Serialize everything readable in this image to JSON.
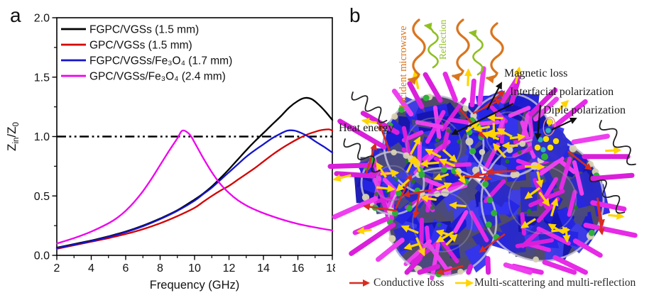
{
  "panels": {
    "a_label": "a",
    "b_label": "b"
  },
  "chart_data": {
    "type": "line",
    "title": "",
    "xlabel": "Frequency (GHz)",
    "ylabel": {
      "pre": "Z",
      "pre_sub": "in",
      "mid": "/Z",
      "mid_sub": "0"
    },
    "xlim": [
      2,
      18
    ],
    "ylim": [
      0.0,
      2.0
    ],
    "xticks": [
      2,
      4,
      6,
      8,
      10,
      12,
      14,
      16,
      18
    ],
    "x_minor_ticks": [
      3,
      5,
      7,
      9,
      11,
      13,
      15,
      17
    ],
    "yticks": [
      "0.0",
      "0.5",
      "1.0",
      "1.5",
      "2.0"
    ],
    "ytick_values": [
      0.0,
      0.5,
      1.0,
      1.5,
      2.0
    ],
    "y_minor_values": [
      0.25,
      0.75,
      1.25,
      1.75
    ],
    "grid": false,
    "legend_position": "top-left",
    "reference_line": {
      "y": 1.0,
      "style": "dash-dot-dot",
      "color": "#000000"
    },
    "series": [
      {
        "name": "FGPC/VGSs (1.5 mm)",
        "color": "#000000",
        "points": [
          [
            2,
            0.065
          ],
          [
            3,
            0.095
          ],
          [
            4,
            0.125
          ],
          [
            5,
            0.16
          ],
          [
            6,
            0.2
          ],
          [
            7,
            0.25
          ],
          [
            8,
            0.31
          ],
          [
            9,
            0.38
          ],
          [
            10,
            0.47
          ],
          [
            10.5,
            0.52
          ],
          [
            11,
            0.58
          ],
          [
            11.5,
            0.65
          ],
          [
            12,
            0.725
          ],
          [
            12.5,
            0.805
          ],
          [
            13,
            0.885
          ],
          [
            13.5,
            0.96
          ],
          [
            14,
            1.03
          ],
          [
            14.5,
            1.1
          ],
          [
            15,
            1.17
          ],
          [
            15.5,
            1.245
          ],
          [
            16,
            1.3
          ],
          [
            16.4,
            1.325
          ],
          [
            16.8,
            1.315
          ],
          [
            17.2,
            1.27
          ],
          [
            17.6,
            1.21
          ],
          [
            18,
            1.14
          ]
        ]
      },
      {
        "name": "GPC/VGSs (1.5 mm)",
        "color": "#d40000",
        "points": [
          [
            2,
            0.055
          ],
          [
            3,
            0.085
          ],
          [
            4,
            0.115
          ],
          [
            5,
            0.145
          ],
          [
            6,
            0.18
          ],
          [
            7,
            0.22
          ],
          [
            8,
            0.27
          ],
          [
            9,
            0.33
          ],
          [
            10,
            0.4
          ],
          [
            10.5,
            0.45
          ],
          [
            11,
            0.5
          ],
          [
            11.5,
            0.545
          ],
          [
            12,
            0.585
          ],
          [
            12.5,
            0.635
          ],
          [
            13,
            0.685
          ],
          [
            13.5,
            0.735
          ],
          [
            14,
            0.79
          ],
          [
            14.5,
            0.845
          ],
          [
            15,
            0.895
          ],
          [
            15.5,
            0.94
          ],
          [
            16,
            0.98
          ],
          [
            16.5,
            1.015
          ],
          [
            17,
            1.04
          ],
          [
            17.4,
            1.055
          ],
          [
            17.8,
            1.06
          ],
          [
            18,
            1.05
          ]
        ]
      },
      {
        "name": "FGPC/VGSs/Fe₃O₄ (1.7 mm)",
        "color": "#1414cc",
        "points": [
          [
            2,
            0.06
          ],
          [
            3,
            0.09
          ],
          [
            4,
            0.12
          ],
          [
            5,
            0.155
          ],
          [
            6,
            0.195
          ],
          [
            7,
            0.245
          ],
          [
            8,
            0.305
          ],
          [
            9,
            0.375
          ],
          [
            10,
            0.46
          ],
          [
            10.5,
            0.515
          ],
          [
            11,
            0.57
          ],
          [
            11.5,
            0.635
          ],
          [
            12,
            0.7
          ],
          [
            12.5,
            0.765
          ],
          [
            13,
            0.83
          ],
          [
            13.5,
            0.885
          ],
          [
            14,
            0.935
          ],
          [
            14.5,
            0.985
          ],
          [
            15,
            1.025
          ],
          [
            15.4,
            1.05
          ],
          [
            15.8,
            1.05
          ],
          [
            16.2,
            1.03
          ],
          [
            16.6,
            1.0
          ],
          [
            17,
            0.96
          ],
          [
            17.5,
            0.915
          ],
          [
            18,
            0.865
          ]
        ]
      },
      {
        "name": "GPC/VGSs/Fe₃O₄ (2.4 mm)",
        "color": "#ee00ee",
        "points": [
          [
            2,
            0.1
          ],
          [
            3,
            0.145
          ],
          [
            4,
            0.2
          ],
          [
            5,
            0.27
          ],
          [
            5.5,
            0.315
          ],
          [
            6,
            0.375
          ],
          [
            6.5,
            0.45
          ],
          [
            7,
            0.54
          ],
          [
            7.5,
            0.645
          ],
          [
            8,
            0.76
          ],
          [
            8.5,
            0.875
          ],
          [
            9,
            0.985
          ],
          [
            9.3,
            1.05
          ],
          [
            9.7,
            1.02
          ],
          [
            10,
            0.95
          ],
          [
            10.5,
            0.82
          ],
          [
            11,
            0.7
          ],
          [
            11.5,
            0.6
          ],
          [
            12,
            0.525
          ],
          [
            12.5,
            0.465
          ],
          [
            13,
            0.42
          ],
          [
            13.5,
            0.385
          ],
          [
            14,
            0.355
          ],
          [
            15,
            0.305
          ],
          [
            16,
            0.265
          ],
          [
            17,
            0.235
          ],
          [
            18,
            0.21
          ]
        ]
      }
    ]
  },
  "illustration": {
    "annotations": {
      "incident_microwave": "Incident microwave",
      "reflection": "Reflection",
      "magnetic_loss": "Magnetic loss",
      "interfacial_polarization": "Interfacial polarization",
      "dipole_polarization": "Diple polarization",
      "heat_energy": "Heat energy"
    },
    "legend": [
      {
        "label": "Conductive loss",
        "color": "#d92b21"
      },
      {
        "label": "Multi-scattering and multi-reflection",
        "color": "#ffd400"
      }
    ],
    "colors": {
      "microwave_orange": "#d9751f",
      "reflection_green": "#8fbf21",
      "rod_magenta": "#e52ae5",
      "flake_blue": "#2323d8",
      "arrow_yellow": "#ffd400",
      "arrow_red": "#d92b21",
      "dot_green": "#2fae3a",
      "dot_beige": "#d8d2b2",
      "dot_cyan": "#2fb3c4",
      "dot_yellow": "#ffdf00",
      "shell_gray": "#c3c0d6",
      "sphere_base": "#4f4b68",
      "heat_wave_black": "#1f1f1f",
      "annotation_black": "#111111"
    }
  }
}
